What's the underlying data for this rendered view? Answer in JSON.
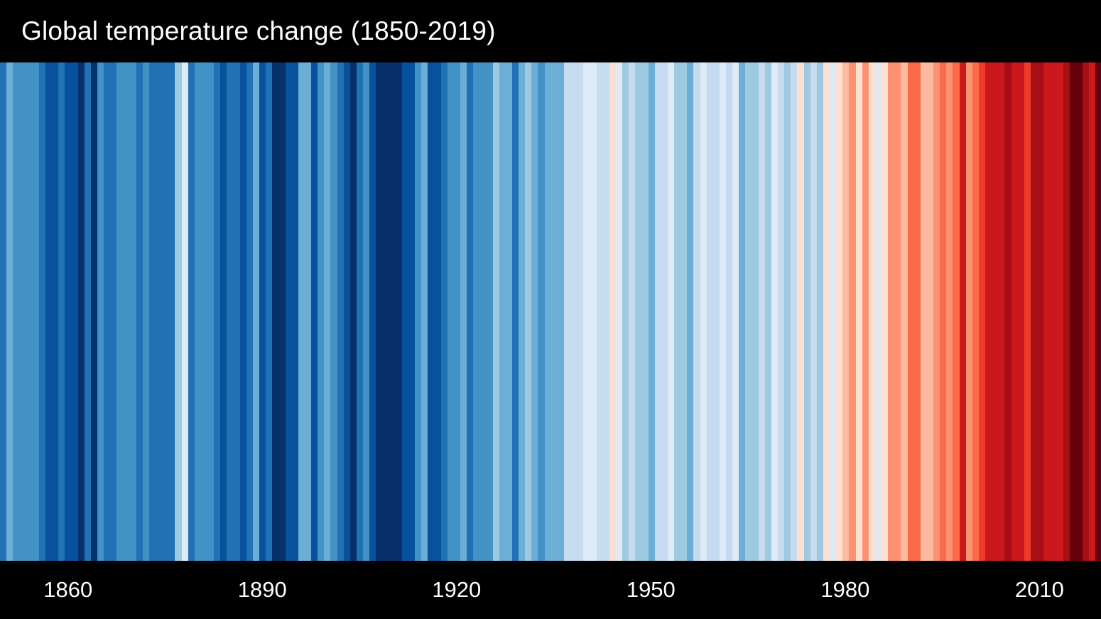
{
  "header": {
    "title": "Global temperature change (1850-2019)"
  },
  "colors": {
    "background": "#000000",
    "title_text": "#ffffff",
    "tick_text": "#ffffff"
  },
  "chart_data": {
    "type": "heatmap",
    "subtype": "warming-stripes",
    "title": "Global temperature change (1850-2019)",
    "xlabel": "",
    "ylabel": "",
    "legend": "none",
    "grid": "off",
    "x_range": [
      1850,
      2019
    ],
    "tick_years": [
      1860,
      1890,
      1920,
      1950,
      1980,
      2010
    ],
    "palette": {
      "blues_coldest_to_mildest": [
        "#08306b",
        "#08519c",
        "#2171b5",
        "#4292c6",
        "#6baed6",
        "#9ecae1",
        "#c6dbef",
        "#deebf7"
      ],
      "reds_mildest_to_hottest": [
        "#fee0d2",
        "#fcbba1",
        "#fc9272",
        "#fb6a4a",
        "#ef3b2c",
        "#cb181d",
        "#a50f15",
        "#67000d"
      ]
    },
    "years": [
      1850,
      1851,
      1852,
      1853,
      1854,
      1855,
      1856,
      1857,
      1858,
      1859,
      1860,
      1861,
      1862,
      1863,
      1864,
      1865,
      1866,
      1867,
      1868,
      1869,
      1870,
      1871,
      1872,
      1873,
      1874,
      1875,
      1876,
      1877,
      1878,
      1879,
      1880,
      1881,
      1882,
      1883,
      1884,
      1885,
      1886,
      1887,
      1888,
      1889,
      1890,
      1891,
      1892,
      1893,
      1894,
      1895,
      1896,
      1897,
      1898,
      1899,
      1900,
      1901,
      1902,
      1903,
      1904,
      1905,
      1906,
      1907,
      1908,
      1909,
      1910,
      1911,
      1912,
      1913,
      1914,
      1915,
      1916,
      1917,
      1918,
      1919,
      1920,
      1921,
      1922,
      1923,
      1924,
      1925,
      1926,
      1927,
      1928,
      1929,
      1930,
      1931,
      1932,
      1933,
      1934,
      1935,
      1936,
      1937,
      1938,
      1939,
      1940,
      1941,
      1942,
      1943,
      1944,
      1945,
      1946,
      1947,
      1948,
      1949,
      1950,
      1951,
      1952,
      1953,
      1954,
      1955,
      1956,
      1957,
      1958,
      1959,
      1960,
      1961,
      1962,
      1963,
      1964,
      1965,
      1966,
      1967,
      1968,
      1969,
      1970,
      1971,
      1972,
      1973,
      1974,
      1975,
      1976,
      1977,
      1978,
      1979,
      1980,
      1981,
      1982,
      1983,
      1984,
      1985,
      1986,
      1987,
      1988,
      1989,
      1990,
      1991,
      1992,
      1993,
      1994,
      1995,
      1996,
      1997,
      1998,
      1999,
      2000,
      2001,
      2002,
      2003,
      2004,
      2005,
      2006,
      2007,
      2008,
      2009,
      2010,
      2011,
      2012,
      2013,
      2014,
      2015,
      2016,
      2017,
      2018,
      2019
    ],
    "stripe_colors": [
      "#2171b5",
      "#6baed6",
      "#4292c6",
      "#4292c6",
      "#4292c6",
      "#4292c6",
      "#2171b5",
      "#08519c",
      "#08519c",
      "#2171b5",
      "#08519c",
      "#08519c",
      "#08306b",
      "#2171b5",
      "#08306b",
      "#4292c6",
      "#2171b5",
      "#2171b5",
      "#4292c6",
      "#4292c6",
      "#4292c6",
      "#2171b5",
      "#4292c6",
      "#2171b5",
      "#2171b5",
      "#2171b5",
      "#2171b5",
      "#9ecae1",
      "#deebf7",
      "#2171b5",
      "#4292c6",
      "#4292c6",
      "#4292c6",
      "#2171b5",
      "#08519c",
      "#2171b5",
      "#2171b5",
      "#08519c",
      "#2171b5",
      "#6baed6",
      "#08519c",
      "#2171b5",
      "#08306b",
      "#08306b",
      "#08519c",
      "#08519c",
      "#6baed6",
      "#6baed6",
      "#08519c",
      "#4292c6",
      "#6baed6",
      "#4292c6",
      "#2171b5",
      "#08519c",
      "#08306b",
      "#2171b5",
      "#4292c6",
      "#08519c",
      "#08306b",
      "#08306b",
      "#08306b",
      "#08306b",
      "#08519c",
      "#08519c",
      "#4292c6",
      "#6baed6",
      "#08519c",
      "#08519c",
      "#2171b5",
      "#4292c6",
      "#4292c6",
      "#6baed6",
      "#2171b5",
      "#4292c6",
      "#4292c6",
      "#4292c6",
      "#9ecae1",
      "#6baed6",
      "#6baed6",
      "#2171b5",
      "#6baed6",
      "#9ecae1",
      "#6baed6",
      "#4292c6",
      "#6baed6",
      "#6baed6",
      "#6baed6",
      "#c6dbef",
      "#c6dbef",
      "#c6dbef",
      "#deebf7",
      "#deebf7",
      "#c6dbef",
      "#c6dbef",
      "#fee0d2",
      "#deebf7",
      "#9ecae1",
      "#c6dbef",
      "#9ecae1",
      "#9ecae1",
      "#6baed6",
      "#c6dbef",
      "#c6dbef",
      "#deebf7",
      "#9ecae1",
      "#9ecae1",
      "#6baed6",
      "#c6dbef",
      "#deebf7",
      "#c6dbef",
      "#c6dbef",
      "#deebf7",
      "#c6dbef",
      "#deebf7",
      "#6baed6",
      "#9ecae1",
      "#9ecae1",
      "#c6dbef",
      "#9ecae1",
      "#deebf7",
      "#c6dbef",
      "#9ecae1",
      "#c6dbef",
      "#fee0d2",
      "#9ecae1",
      "#c6dbef",
      "#9ecae1",
      "#fee0d2",
      "#deebf7",
      "#fee0d2",
      "#fcbba1",
      "#fc9272",
      "#fee0d2",
      "#fc9272",
      "#fee0d2",
      "#deebf7",
      "#fee0d2",
      "#fc9272",
      "#fc9272",
      "#fcbba1",
      "#fb6a4a",
      "#fb6a4a",
      "#fcbba1",
      "#fcbba1",
      "#fc9272",
      "#fb6a4a",
      "#fc9272",
      "#fb6a4a",
      "#cb181d",
      "#fc9272",
      "#fb6a4a",
      "#ef3b2c",
      "#cb181d",
      "#cb181d",
      "#cb181d",
      "#a50f15",
      "#cb181d",
      "#cb181d",
      "#ef3b2c",
      "#a50f15",
      "#a50f15",
      "#cb181d",
      "#cb181d",
      "#cb181d",
      "#a50f15",
      "#67000d",
      "#67000d",
      "#a50f15",
      "#cb181d",
      "#67000d"
    ]
  }
}
